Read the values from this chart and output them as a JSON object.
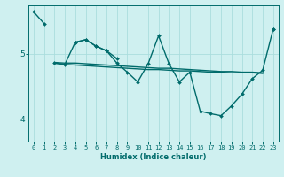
{
  "xlabel": "Humidex (Indice chaleur)",
  "bg_color": "#cff0f0",
  "grid_color_major": "#aadddd",
  "grid_color_minor": "#ddf5f5",
  "line_color": "#006b6b",
  "xlim": [
    -0.5,
    23.5
  ],
  "ylim": [
    3.65,
    5.75
  ],
  "yticks": [
    4,
    5
  ],
  "xticks": [
    0,
    1,
    2,
    3,
    4,
    5,
    6,
    7,
    8,
    9,
    10,
    11,
    12,
    13,
    14,
    15,
    16,
    17,
    18,
    19,
    20,
    21,
    22,
    23
  ],
  "series": [
    {
      "x": [
        0,
        1,
        2,
        3,
        4,
        5,
        6,
        7,
        8,
        9,
        10,
        11,
        12,
        13,
        14,
        15,
        16,
        17,
        18,
        19,
        20,
        21,
        22,
        23
      ],
      "y": [
        5.65,
        5.47,
        null,
        null,
        5.18,
        5.22,
        5.12,
        5.05,
        4.93,
        null,
        null,
        null,
        null,
        null,
        null,
        null,
        null,
        null,
        null,
        null,
        null,
        null,
        null,
        5.38
      ],
      "marker": "D",
      "markersize": 2.0,
      "linewidth": 1.0,
      "has_markers": true
    },
    {
      "x": [
        2,
        3,
        4,
        5,
        6,
        7,
        8,
        9,
        10,
        11,
        12,
        13,
        14,
        15,
        16,
        17,
        18,
        19,
        20,
        21,
        22
      ],
      "y": [
        4.86,
        4.84,
        4.83,
        4.82,
        4.81,
        4.8,
        4.79,
        4.78,
        4.77,
        4.76,
        4.76,
        4.75,
        4.74,
        4.74,
        4.73,
        4.72,
        4.72,
        4.71,
        4.71,
        4.71,
        4.7
      ],
      "marker": null,
      "markersize": 0,
      "linewidth": 1.0,
      "has_markers": false
    },
    {
      "x": [
        2,
        3,
        4,
        5,
        6,
        7,
        8,
        9,
        10,
        11,
        12,
        13,
        14,
        15,
        16,
        17,
        18,
        19,
        20,
        21,
        22
      ],
      "y": [
        4.87,
        4.86,
        4.86,
        4.85,
        4.84,
        4.83,
        4.82,
        4.81,
        4.8,
        4.79,
        4.78,
        4.78,
        4.77,
        4.76,
        4.75,
        4.74,
        4.73,
        4.73,
        4.72,
        4.72,
        4.71
      ],
      "marker": null,
      "markersize": 0,
      "linewidth": 1.0,
      "has_markers": false
    },
    {
      "x": [
        2,
        3,
        4,
        5,
        6,
        7,
        8,
        9,
        10,
        11,
        12,
        13,
        14,
        15,
        16,
        17,
        18,
        19,
        20,
        21,
        22,
        23
      ],
      "y": [
        4.86,
        4.84,
        5.18,
        5.22,
        5.12,
        5.05,
        4.86,
        4.72,
        4.57,
        4.85,
        5.28,
        4.85,
        4.57,
        4.72,
        4.12,
        4.08,
        4.05,
        4.2,
        4.38,
        4.62,
        4.75,
        5.38
      ],
      "marker": "D",
      "markersize": 2.0,
      "linewidth": 1.0,
      "has_markers": true
    }
  ]
}
